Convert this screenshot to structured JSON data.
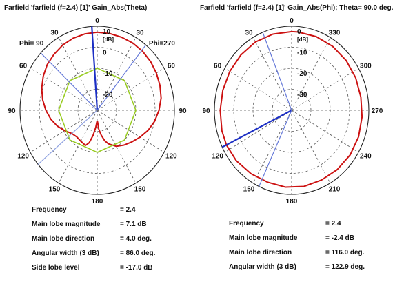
{
  "chart_data": [
    {
      "type": "polar-line",
      "title": "Farfield 'farfield (f=2.4) [1]' Gain_Abs(Theta)",
      "angle_ticks": [
        "0",
        "30",
        "60",
        "90",
        "120",
        "150",
        "180",
        "150",
        "120",
        "90",
        "60",
        "30"
      ],
      "side_labels": {
        "left": "Phi= 90",
        "right": "Phi=270"
      },
      "radial_ticks": [
        "10",
        "0",
        "-10",
        "-20"
      ],
      "radial_unit": "[dB]",
      "rlim": [
        -30,
        10
      ],
      "grid": true,
      "series": [
        {
          "color": "#cc1111",
          "points": [
            [
              0,
              7.1
            ],
            [
              10,
              6.9
            ],
            [
              20,
              6.5
            ],
            [
              30,
              5.8
            ],
            [
              40,
              4.8
            ],
            [
              50,
              3.8
            ],
            [
              60,
              2.3
            ],
            [
              70,
              0.6
            ],
            [
              80,
              -1.3
            ],
            [
              90,
              -3.4
            ],
            [
              100,
              -5.6
            ],
            [
              110,
              -8.0
            ],
            [
              120,
              -10.6
            ],
            [
              130,
              -12.8
            ],
            [
              140,
              -13.5
            ],
            [
              150,
              -13.0
            ],
            [
              160,
              -12.2
            ],
            [
              165,
              -14.0
            ],
            [
              170,
              -18.0
            ],
            [
              175,
              -22.0
            ],
            [
              178,
              -24.5
            ],
            [
              182,
              -24.5
            ],
            [
              185,
              -21.0
            ],
            [
              190,
              -18.0
            ],
            [
              195,
              -15.0
            ],
            [
              200,
              -13.0
            ],
            [
              210,
              -10.2
            ],
            [
              220,
              -8.4
            ],
            [
              230,
              -6.6
            ],
            [
              240,
              -4.4
            ],
            [
              250,
              -2.0
            ],
            [
              260,
              0.2
            ],
            [
              270,
              2.0
            ],
            [
              280,
              3.6
            ],
            [
              290,
              4.6
            ],
            [
              300,
              5.4
            ],
            [
              310,
              6.1
            ],
            [
              320,
              6.6
            ],
            [
              330,
              6.9
            ],
            [
              340,
              7.0
            ],
            [
              350,
              7.1
            ]
          ]
        },
        {
          "color": "#99cc22",
          "points": [
            [
              0,
              -10
            ],
            [
              45,
              -10
            ],
            [
              90,
              -10
            ],
            [
              135,
              -10
            ],
            [
              180,
              -10
            ],
            [
              225,
              -10
            ],
            [
              270,
              -10
            ],
            [
              315,
              -10
            ]
          ]
        }
      ],
      "markers": [
        {
          "type": "main_lobe",
          "angle": 4
        },
        {
          "type": "beamwidth",
          "angle": 321
        },
        {
          "type": "beamwidth",
          "angle": 47
        },
        {
          "type": "sidelobe",
          "angle": 130
        }
      ],
      "info": [
        {
          "label": "Frequency",
          "value": "= 2.4"
        },
        {
          "label": "Main lobe magnitude",
          "value": "=  7.1 dB"
        },
        {
          "label": "Main lobe direction",
          "value": "=  4.0 deg."
        },
        {
          "label": "Angular width (3 dB)",
          "value": "=  86.0 deg."
        },
        {
          "label": "Side lobe level",
          "value": "= -17.0 dB"
        }
      ]
    },
    {
      "type": "polar-line",
      "title": "Farfield 'farfield (f=2.4) [1]' Gain_Abs(Phi); Theta=  90.0 deg.",
      "angle_ticks": [
        "0",
        "30",
        "60",
        "90",
        "120",
        "150",
        "180",
        "210",
        "240",
        "270",
        "300",
        "330"
      ],
      "radial_ticks": [
        "0",
        "-10",
        "-20",
        "-30"
      ],
      "radial_unit": "[dB]",
      "rlim": [
        -40,
        0
      ],
      "grid": true,
      "series": [
        {
          "color": "#cc1111",
          "points": [
            [
              0,
              -2.6
            ],
            [
              15,
              -2.5
            ],
            [
              30,
              -2.5
            ],
            [
              45,
              -2.8
            ],
            [
              60,
              -3.0
            ],
            [
              75,
              -3.1
            ],
            [
              90,
              -3.0
            ],
            [
              105,
              -2.6
            ],
            [
              116,
              -2.4
            ],
            [
              130,
              -2.6
            ],
            [
              145,
              -3.2
            ],
            [
              160,
              -3.6
            ],
            [
              175,
              -3.3
            ],
            [
              190,
              -3.2
            ],
            [
              205,
              -3.4
            ],
            [
              220,
              -3.2
            ],
            [
              235,
              -3.0
            ],
            [
              250,
              -3.1
            ],
            [
              265,
              -3.4
            ],
            [
              280,
              -3.6
            ],
            [
              295,
              -3.4
            ],
            [
              310,
              -3.1
            ],
            [
              325,
              -2.9
            ],
            [
              340,
              -2.7
            ],
            [
              355,
              -2.6
            ]
          ]
        }
      ],
      "markers": [
        {
          "type": "main_lobe",
          "angle": 116
        },
        {
          "type": "beamwidth",
          "angle": 155
        },
        {
          "type": "beamwidth",
          "angle": 22
        }
      ],
      "info": [
        {
          "label": "Frequency",
          "value": "= 2.4"
        },
        {
          "label": "Main lobe magnitude",
          "value": "= -2.4 dB"
        },
        {
          "label": "Main lobe direction",
          "value": "= 116.0 deg."
        },
        {
          "label": "Angular width (3 dB)",
          "value": "= 122.9 deg."
        }
      ]
    }
  ]
}
